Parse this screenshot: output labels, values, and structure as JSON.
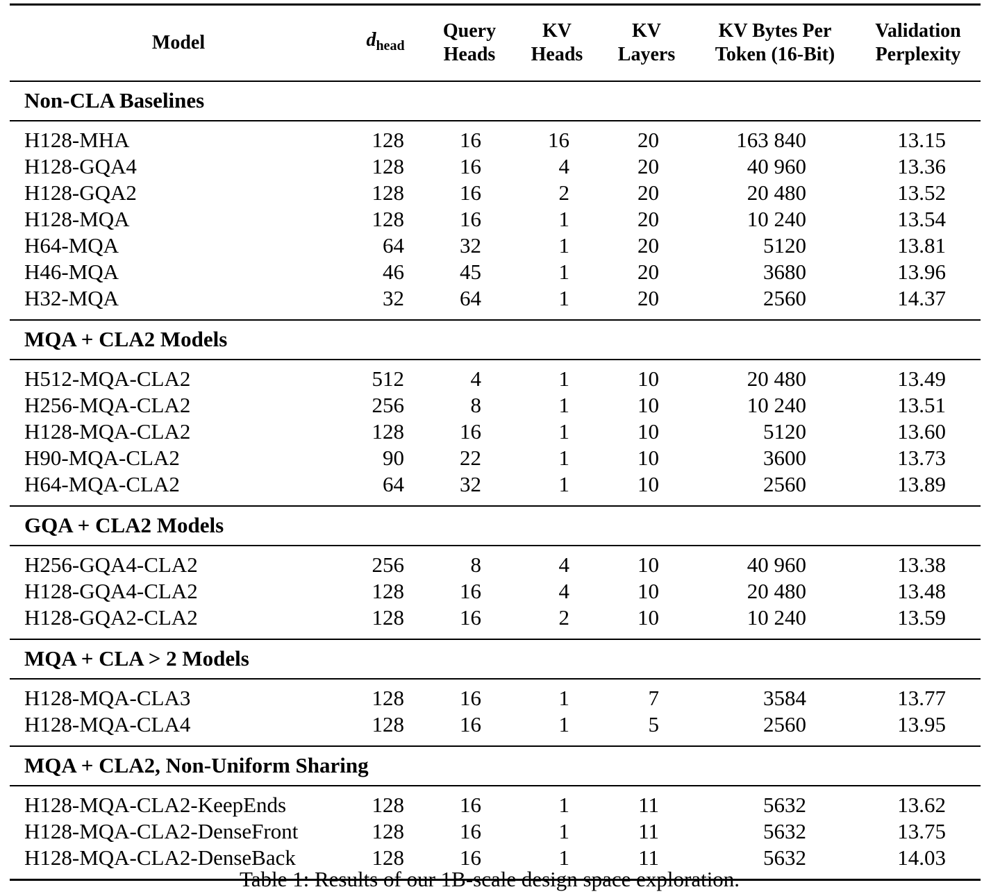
{
  "table": {
    "headers": {
      "model": "Model",
      "dhead_symbol": "d",
      "dhead_sub": "head",
      "query_heads_1": "Query",
      "query_heads_2": "Heads",
      "kv_heads_1": "KV",
      "kv_heads_2": "Heads",
      "kv_layers_1": "KV",
      "kv_layers_2": "Layers",
      "kv_bytes_1": "KV Bytes Per",
      "kv_bytes_2": "Token (16-Bit)",
      "perplexity_1": "Validation",
      "perplexity_2": "Perplexity"
    },
    "groups": [
      {
        "title": "Non-CLA Baselines",
        "rows": [
          [
            "H128-MHA",
            "128",
            "16",
            "16",
            "20",
            "163 840",
            "13.15"
          ],
          [
            "H128-GQA4",
            "128",
            "16",
            "4",
            "20",
            "40 960",
            "13.36"
          ],
          [
            "H128-GQA2",
            "128",
            "16",
            "2",
            "20",
            "20 480",
            "13.52"
          ],
          [
            "H128-MQA",
            "128",
            "16",
            "1",
            "20",
            "10 240",
            "13.54"
          ],
          [
            "H64-MQA",
            "64",
            "32",
            "1",
            "20",
            "5120",
            "13.81"
          ],
          [
            "H46-MQA",
            "46",
            "45",
            "1",
            "20",
            "3680",
            "13.96"
          ],
          [
            "H32-MQA",
            "32",
            "64",
            "1",
            "20",
            "2560",
            "14.37"
          ]
        ]
      },
      {
        "title": "MQA + CLA2 Models",
        "rows": [
          [
            "H512-MQA-CLA2",
            "512",
            "4",
            "1",
            "10",
            "20 480",
            "13.49"
          ],
          [
            "H256-MQA-CLA2",
            "256",
            "8",
            "1",
            "10",
            "10 240",
            "13.51"
          ],
          [
            "H128-MQA-CLA2",
            "128",
            "16",
            "1",
            "10",
            "5120",
            "13.60"
          ],
          [
            "H90-MQA-CLA2",
            "90",
            "22",
            "1",
            "10",
            "3600",
            "13.73"
          ],
          [
            "H64-MQA-CLA2",
            "64",
            "32",
            "1",
            "10",
            "2560",
            "13.89"
          ]
        ]
      },
      {
        "title": "GQA + CLA2 Models",
        "rows": [
          [
            "H256-GQA4-CLA2",
            "256",
            "8",
            "4",
            "10",
            "40 960",
            "13.38"
          ],
          [
            "H128-GQA4-CLA2",
            "128",
            "16",
            "4",
            "10",
            "20 480",
            "13.48"
          ],
          [
            "H128-GQA2-CLA2",
            "128",
            "16",
            "2",
            "10",
            "10 240",
            "13.59"
          ]
        ]
      },
      {
        "title": "MQA + CLA > 2 Models",
        "rows": [
          [
            "H128-MQA-CLA3",
            "128",
            "16",
            "1",
            "7",
            "3584",
            "13.77"
          ],
          [
            "H128-MQA-CLA4",
            "128",
            "16",
            "1",
            "5",
            "2560",
            "13.95"
          ]
        ]
      },
      {
        "title": "MQA + CLA2, Non-Uniform Sharing",
        "rows": [
          [
            "H128-MQA-CLA2-KeepEnds",
            "128",
            "16",
            "1",
            "11",
            "5632",
            "13.62"
          ],
          [
            "H128-MQA-CLA2-DenseFront",
            "128",
            "16",
            "1",
            "11",
            "5632",
            "13.75"
          ],
          [
            "H128-MQA-CLA2-DenseBack",
            "128",
            "16",
            "1",
            "11",
            "5632",
            "14.03"
          ]
        ]
      }
    ]
  },
  "caption": "Table 1: Results of our 1B-scale design space exploration."
}
